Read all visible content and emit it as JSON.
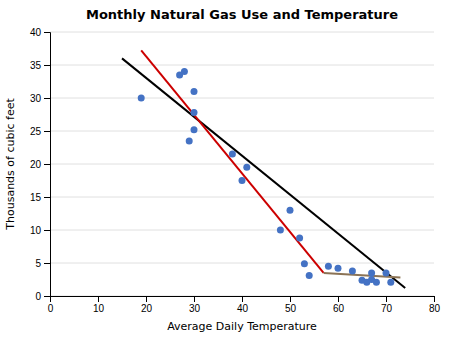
{
  "chart_data": {
    "type": "scatter",
    "title": "Monthly Natural Gas Use and Temperature",
    "xlabel": "Average Daily Temperature",
    "ylabel": "Thousands of cubic feet",
    "xlim": [
      0,
      80
    ],
    "ylim": [
      0,
      40
    ],
    "xticks": [
      0,
      10,
      20,
      30,
      40,
      50,
      60,
      70,
      80
    ],
    "yticks": [
      0,
      5,
      10,
      15,
      20,
      25,
      30,
      35,
      40
    ],
    "grid": "y",
    "series": [
      {
        "type": "scatter",
        "color": "#4472C4",
        "marker": "circle",
        "x": [
          19,
          27,
          28,
          29,
          30,
          30,
          30,
          38,
          40,
          41,
          48,
          50,
          52,
          53,
          54,
          58,
          60,
          63,
          65,
          66,
          67,
          67,
          68,
          70,
          71
        ],
        "values": [
          30,
          33.5,
          34,
          23.5,
          31,
          27.8,
          25.2,
          21.5,
          17.5,
          19.5,
          10,
          13,
          8.8,
          4.9,
          3.1,
          4.5,
          4.2,
          3.8,
          2.4,
          2.1,
          3.5,
          2.5,
          2.1,
          3.5,
          2.1
        ]
      },
      {
        "type": "line",
        "color": "black",
        "x": [
          15,
          74
        ],
        "values": [
          36,
          1.2
        ]
      },
      {
        "type": "line",
        "color": "#cc0000",
        "x": [
          19,
          57
        ],
        "values": [
          37.2,
          3.5
        ]
      },
      {
        "type": "line",
        "color": "#8B7355",
        "x": [
          57,
          73
        ],
        "values": [
          3.5,
          2.8
        ]
      }
    ]
  }
}
